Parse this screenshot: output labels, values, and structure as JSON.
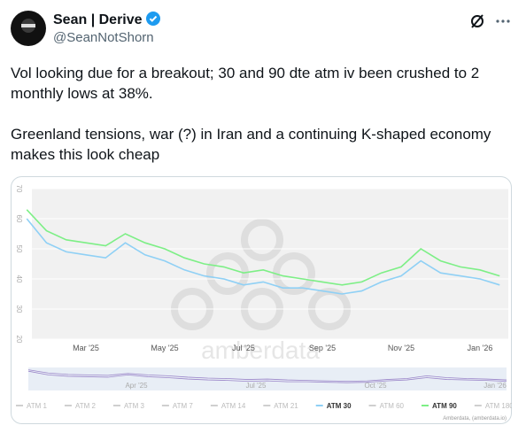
{
  "post": {
    "name": "Sean | Derive",
    "handle": "@SeanNotShorn",
    "paragraphs": [
      "Vol looking due for a breakout; 30 and 90 dte atm iv been crushed to 2 monthly lows at 38%.",
      "Greenland tensions, war (?) in Iran and a continuing K-shaped economy makes this look cheap"
    ]
  },
  "chart_data": {
    "type": "line",
    "categories": [
      null,
      null,
      null,
      "Mar '25",
      null,
      null,
      null,
      "May '25",
      null,
      null,
      null,
      "Jul '25",
      null,
      null,
      null,
      "Sep '25",
      null,
      null,
      null,
      "Nov '25",
      null,
      null,
      null,
      "Jan '26",
      null
    ],
    "series": [
      {
        "name": "ATM 30",
        "color": "#8fd0f5",
        "values": [
          60,
          52,
          49,
          48,
          47,
          52,
          48,
          46,
          43,
          41,
          40,
          38,
          39,
          37,
          37,
          36,
          35,
          36,
          39,
          41,
          46,
          42,
          41,
          40,
          38
        ]
      },
      {
        "name": "ATM 90",
        "color": "#7def86",
        "values": [
          63,
          56,
          53,
          52,
          51,
          55,
          52,
          50,
          47,
          45,
          44,
          42,
          43,
          41,
          40,
          39,
          38,
          39,
          42,
          44,
          50,
          46,
          44,
          43,
          41
        ]
      }
    ],
    "legend": [
      {
        "name": "ATM 1",
        "color": "#cfcfcf"
      },
      {
        "name": "ATM 2",
        "color": "#cfcfcf"
      },
      {
        "name": "ATM 3",
        "color": "#cfcfcf"
      },
      {
        "name": "ATM 7",
        "color": "#cfcfcf"
      },
      {
        "name": "ATM 14",
        "color": "#cfcfcf"
      },
      {
        "name": "ATM 21",
        "color": "#cfcfcf"
      },
      {
        "name": "ATM 30",
        "color": "#8fd0f5"
      },
      {
        "name": "ATM 60",
        "color": "#cfcfcf"
      },
      {
        "name": "ATM 90",
        "color": "#7def86"
      },
      {
        "name": "ATM 180",
        "color": "#cfcfcf"
      }
    ],
    "ylim": [
      20,
      70
    ],
    "yticks": [
      20,
      30,
      40,
      50,
      60,
      70
    ],
    "grid": true,
    "navigator_labels": [
      "Apr '25",
      "Jul '25",
      "Oct '25",
      "Jan '26"
    ],
    "watermark": "amberdata",
    "credits": "Amberdata, (amberdata.io)"
  }
}
